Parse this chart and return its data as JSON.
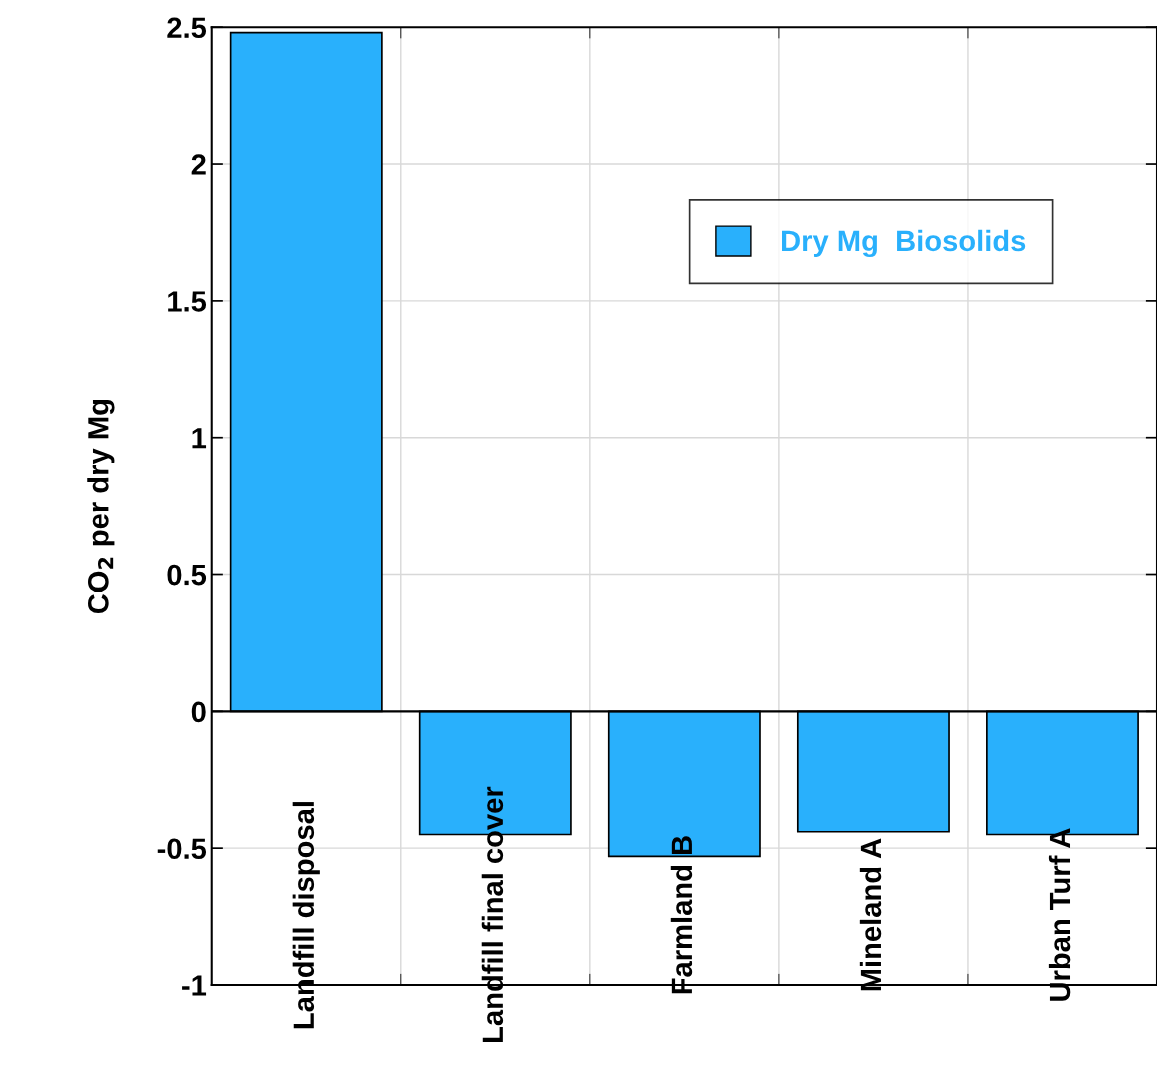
{
  "chart_data": {
    "type": "bar",
    "categories": [
      "Landfill disposal",
      "Landfill final cover",
      "Farmland B",
      "Mineland A",
      "Urban Turf A"
    ],
    "series": [
      {
        "name": "Dry Mg  Biosolids",
        "color": "#29b0fc",
        "values": [
          2.48,
          -0.45,
          -0.53,
          -0.44,
          -0.45
        ]
      }
    ],
    "ylabel": "CO$_{2}$ per dry Mg",
    "ylim": [
      -1,
      2.5
    ],
    "yticks": [
      -1,
      -0.5,
      0,
      0.5,
      1,
      1.5,
      2,
      2.5
    ],
    "grid": true,
    "legend": "top right"
  }
}
